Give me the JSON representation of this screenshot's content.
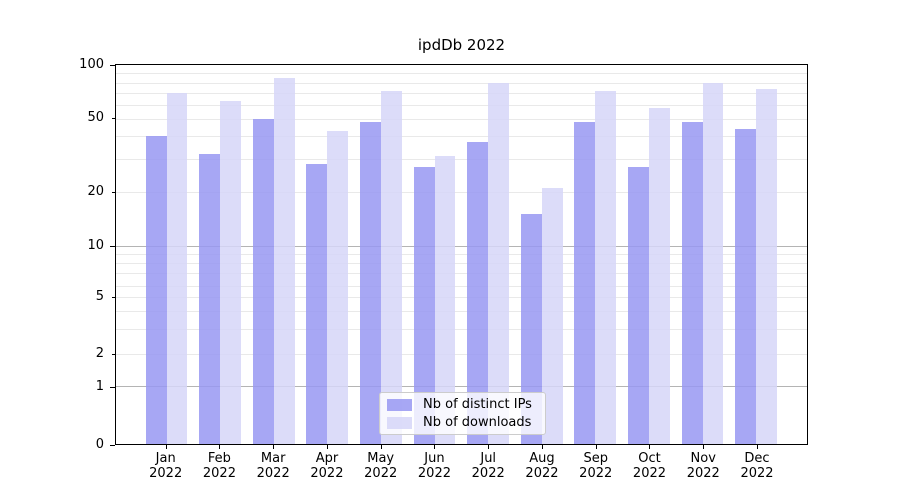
{
  "title": "ipdDb 2022",
  "chart_data": {
    "type": "bar",
    "title": "ipdDb 2022",
    "categories": [
      "Jan 2022",
      "Feb 2022",
      "Mar 2022",
      "Apr 2022",
      "May 2022",
      "Jun 2022",
      "Jul 2022",
      "Aug 2022",
      "Sep 2022",
      "Oct 2022",
      "Nov 2022",
      "Dec 2022"
    ],
    "series": [
      {
        "name": "Nb of distinct IPs",
        "color": "#9898f2",
        "values": [
          40,
          32,
          50,
          28,
          48,
          27,
          37,
          15,
          48,
          27,
          48,
          44
        ]
      },
      {
        "name": "Nb of downloads",
        "color": "#d6d6f8",
        "values": [
          70,
          63,
          85,
          43,
          72,
          31,
          80,
          21,
          72,
          58,
          80,
          74
        ]
      }
    ],
    "yscale": "symlog",
    "ylim": [
      0,
      100
    ],
    "yticks": [
      100,
      50,
      20,
      10,
      5,
      2,
      1,
      0
    ],
    "grid": true,
    "legend_position": "lower center",
    "xlabel": "",
    "ylabel": ""
  }
}
